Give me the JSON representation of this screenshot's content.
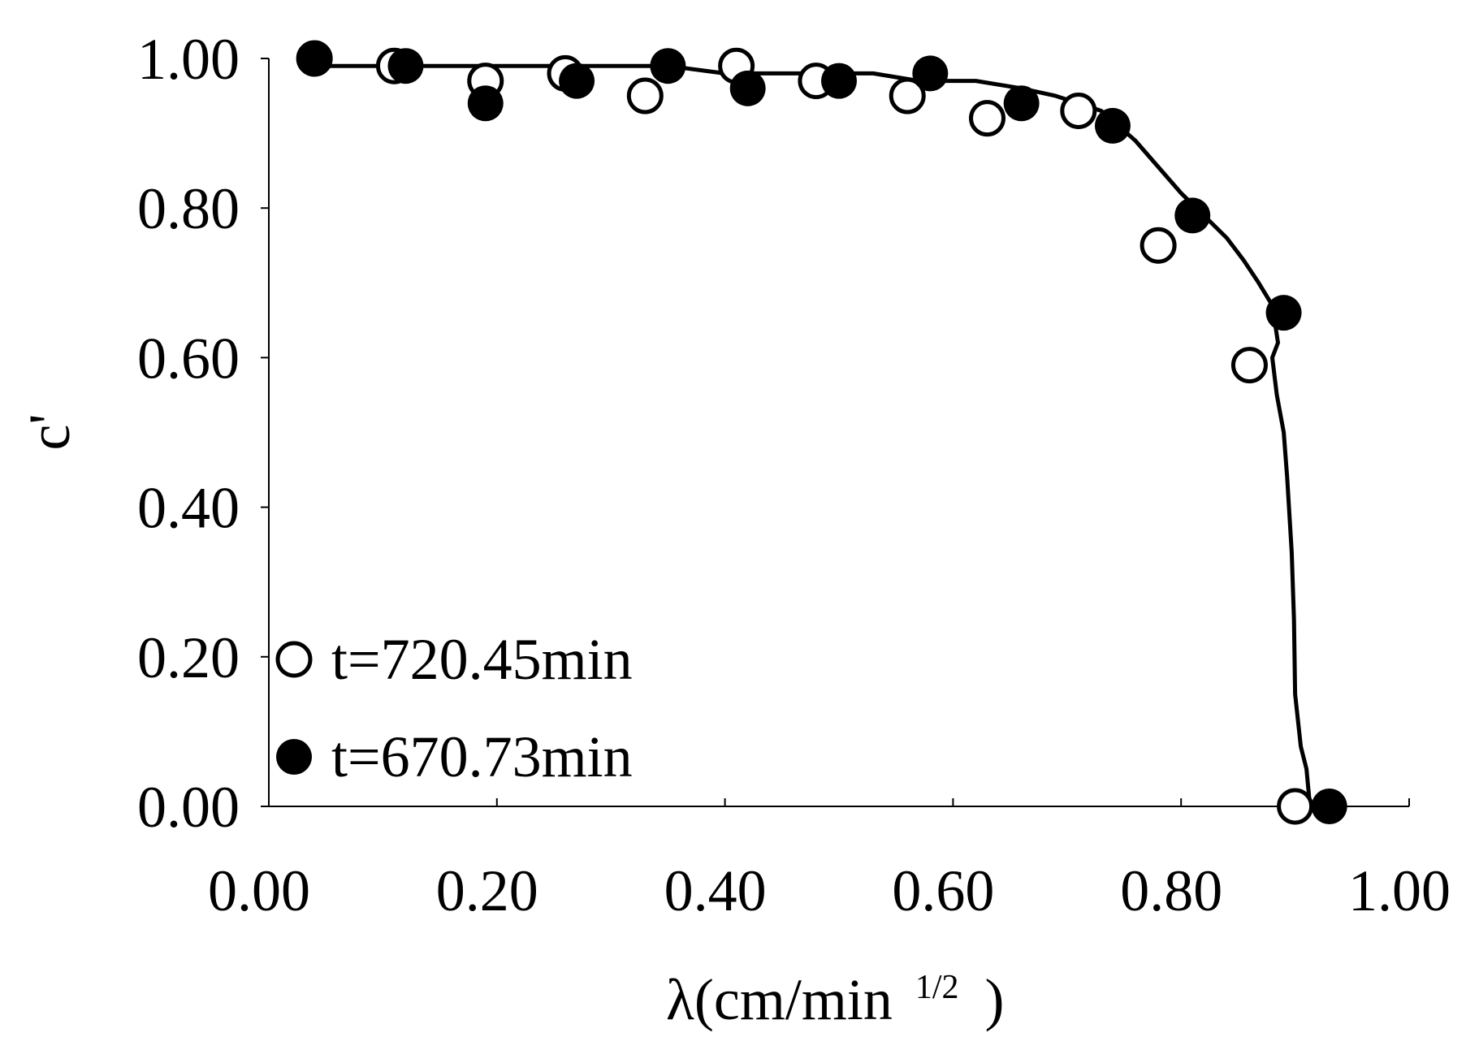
{
  "chart_data": {
    "type": "scatter",
    "title": "",
    "xlabel": "λ(cm/min",
    "xlabel_superscript": "1/2",
    "xlabel_close": ")",
    "ylabel": "c'",
    "xlim": [
      0,
      1.0
    ],
    "ylim": [
      0,
      1.0
    ],
    "x_ticks": [
      "0.00",
      "0.20",
      "0.40",
      "0.60",
      "0.80",
      "1.00"
    ],
    "y_ticks": [
      "0.00",
      "0.20",
      "0.40",
      "0.60",
      "0.80",
      "1.00"
    ],
    "grid": false,
    "legend_position": "lower-left",
    "series": [
      {
        "name": "t=720.45min",
        "marker": "open-circle",
        "points": [
          [
            0.04,
            1.0
          ],
          [
            0.11,
            0.99
          ],
          [
            0.19,
            0.97
          ],
          [
            0.26,
            0.98
          ],
          [
            0.33,
            0.95
          ],
          [
            0.41,
            0.99
          ],
          [
            0.48,
            0.97
          ],
          [
            0.56,
            0.95
          ],
          [
            0.63,
            0.92
          ],
          [
            0.71,
            0.93
          ],
          [
            0.78,
            0.75
          ],
          [
            0.86,
            0.59
          ],
          [
            0.9,
            0.0
          ]
        ]
      },
      {
        "name": "t=670.73min",
        "marker": "filled-circle",
        "points": [
          [
            0.04,
            1.0
          ],
          [
            0.12,
            0.99
          ],
          [
            0.19,
            0.94
          ],
          [
            0.27,
            0.97
          ],
          [
            0.35,
            0.99
          ],
          [
            0.42,
            0.96
          ],
          [
            0.5,
            0.97
          ],
          [
            0.58,
            0.98
          ],
          [
            0.66,
            0.94
          ],
          [
            0.74,
            0.91
          ],
          [
            0.81,
            0.79
          ],
          [
            0.89,
            0.66
          ],
          [
            0.93,
            0.0
          ]
        ]
      }
    ],
    "fit_curve": {
      "points": [
        [
          0.04,
          0.99
        ],
        [
          0.3,
          0.99
        ],
        [
          0.35,
          0.99
        ],
        [
          0.4,
          0.98
        ],
        [
          0.53,
          0.98
        ],
        [
          0.57,
          0.97
        ],
        [
          0.62,
          0.97
        ],
        [
          0.66,
          0.96
        ],
        [
          0.69,
          0.95
        ],
        [
          0.73,
          0.93
        ],
        [
          0.76,
          0.89
        ],
        [
          0.8,
          0.82
        ],
        [
          0.82,
          0.79
        ],
        [
          0.84,
          0.76
        ],
        [
          0.855,
          0.73
        ],
        [
          0.868,
          0.7
        ],
        [
          0.88,
          0.67
        ],
        [
          0.885,
          0.62
        ],
        [
          0.88,
          0.6
        ],
        [
          0.884,
          0.55
        ],
        [
          0.89,
          0.5
        ],
        [
          0.893,
          0.44
        ],
        [
          0.897,
          0.34
        ],
        [
          0.899,
          0.25
        ],
        [
          0.9,
          0.15
        ],
        [
          0.905,
          0.08
        ],
        [
          0.91,
          0.05
        ],
        [
          0.913,
          0.0
        ]
      ]
    },
    "colors": {
      "axis": "#000000",
      "curve": "#000000",
      "marker": "#000000",
      "background": "#ffffff"
    }
  }
}
